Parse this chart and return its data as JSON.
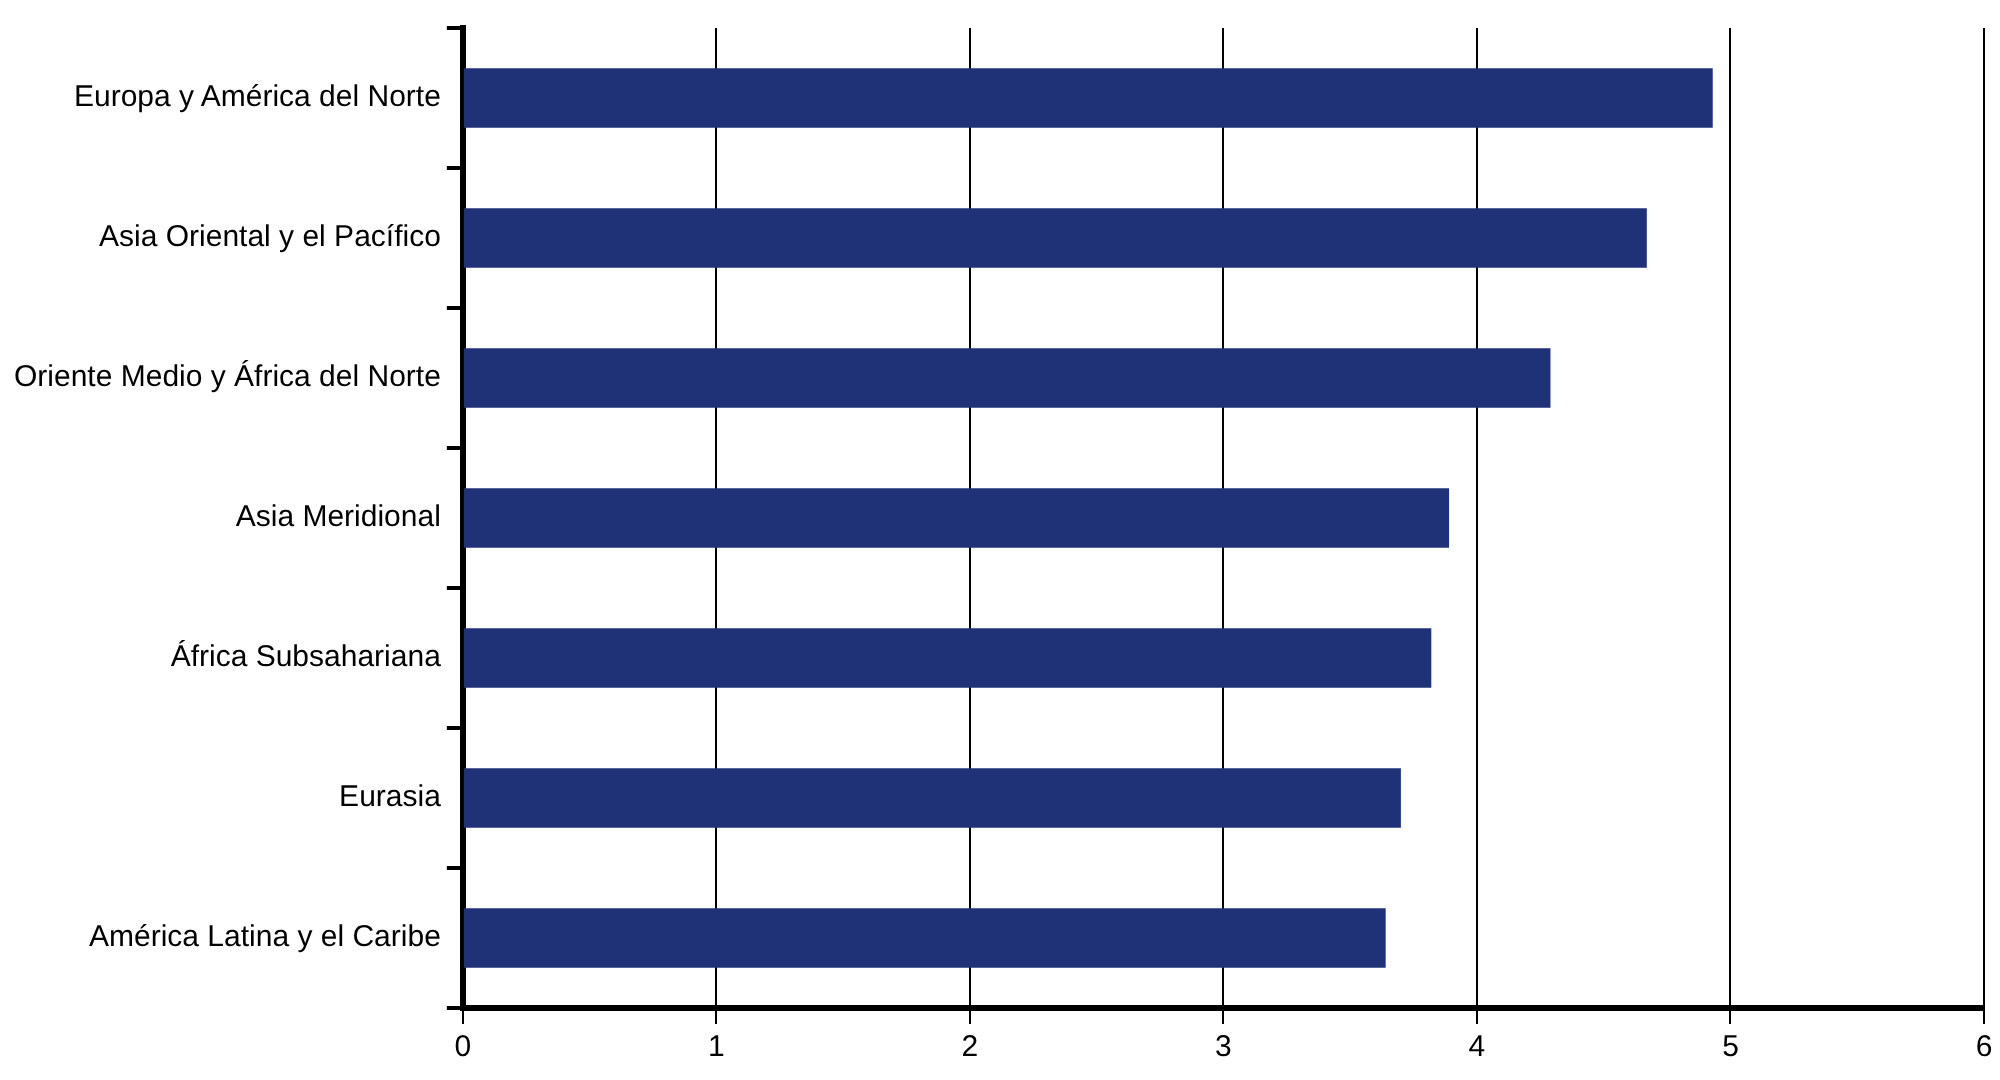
{
  "chart_data": {
    "type": "bar",
    "orientation": "horizontal",
    "categories": [
      "Europa y América del Norte",
      "Asia Oriental y el Pacífico",
      "Oriente Medio y África del Norte",
      "Asia Meridional",
      "África Subsahariana",
      "Eurasia",
      "América Latina y el Caribe"
    ],
    "values": [
      4.93,
      4.67,
      4.29,
      3.89,
      3.82,
      3.7,
      3.64
    ],
    "color": "#1f3278",
    "xlim": [
      0,
      6
    ],
    "xticks": [
      0,
      1,
      2,
      3,
      4,
      5,
      6
    ],
    "grid": "x",
    "legend": false
  }
}
